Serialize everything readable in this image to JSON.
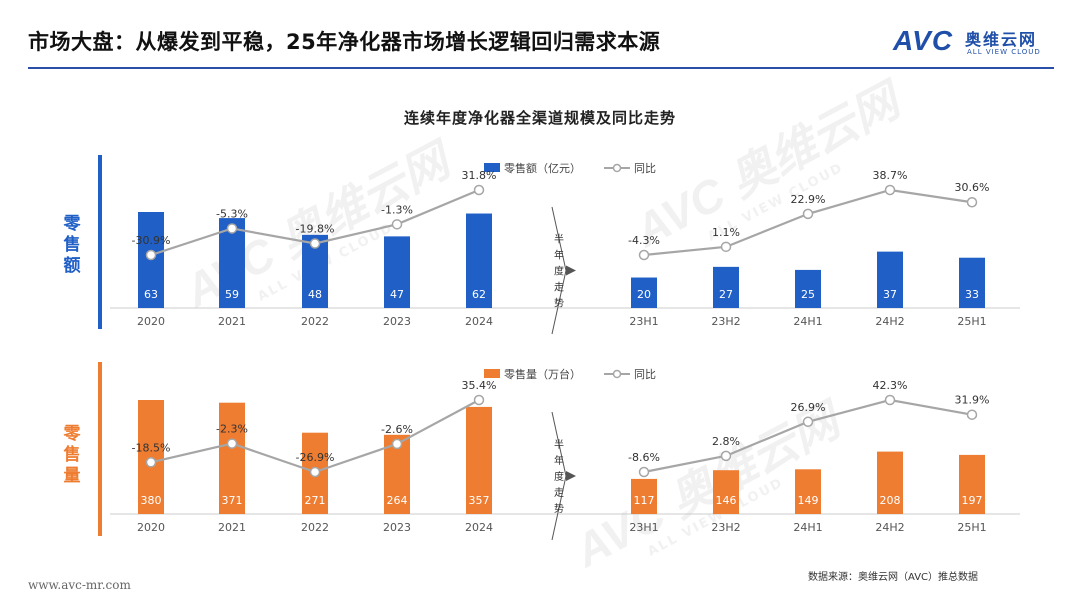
{
  "header": {
    "title": "市场大盘：从爆发到平稳，25年净化器市场增长逻辑回归需求本源",
    "logo_text": "AVC",
    "logo_cn": "奥维云网",
    "logo_en": "ALL VIEW CLOUD"
  },
  "watermark": {
    "text": "AVC 奥维云网",
    "sub": "ALL VIEW CLOUD"
  },
  "colors": {
    "blue": "#1f5fc6",
    "orange": "#ee7d31",
    "line": "#a6a6a6",
    "title_rule": "#2a4fa8"
  },
  "chart_data": [
    {
      "type": "bar",
      "title": "连续年度净化器全渠道规模及同比走势",
      "side_label": "零售额",
      "legend": {
        "bar": "零售额（亿元）",
        "line": "同比"
      },
      "divider_label": "半年度走势",
      "color": "#1f5fc6",
      "annual": {
        "categories": [
          "2020",
          "2021",
          "2022",
          "2023",
          "2024"
        ],
        "values": [
          63,
          59,
          48,
          47,
          62
        ],
        "yoy": [
          "-30.9%",
          "-5.3%",
          "-19.8%",
          "-1.3%",
          "31.8%"
        ],
        "yoy_values": [
          -30.9,
          -5.3,
          -19.8,
          -1.3,
          31.8
        ]
      },
      "half": {
        "categories": [
          "23H1",
          "23H2",
          "24H1",
          "24H2",
          "25H1"
        ],
        "values": [
          20,
          27,
          25,
          37,
          33
        ],
        "yoy": [
          "-4.3%",
          "1.1%",
          "22.9%",
          "38.7%",
          "30.6%"
        ],
        "yoy_values": [
          -4.3,
          1.1,
          22.9,
          38.7,
          30.6
        ]
      }
    },
    {
      "type": "bar",
      "side_label": "零售量",
      "legend": {
        "bar": "零售量（万台）",
        "line": "同比"
      },
      "divider_label": "半年度走势",
      "color": "#ee7d31",
      "annual": {
        "categories": [
          "2020",
          "2021",
          "2022",
          "2023",
          "2024"
        ],
        "values": [
          380,
          371,
          271,
          264,
          357
        ],
        "yoy": [
          "-18.5%",
          "-2.3%",
          "-26.9%",
          "-2.6%",
          "35.4%"
        ],
        "yoy_values": [
          -18.5,
          -2.3,
          -26.9,
          -2.6,
          35.4
        ]
      },
      "half": {
        "categories": [
          "23H1",
          "23H2",
          "24H1",
          "24H2",
          "25H1"
        ],
        "values": [
          117,
          146,
          149,
          208,
          197
        ],
        "yoy": [
          "-8.6%",
          "2.8%",
          "26.9%",
          "42.3%",
          "31.9%"
        ],
        "yoy_values": [
          -8.6,
          2.8,
          26.9,
          42.3,
          31.9
        ]
      }
    }
  ],
  "footer": {
    "url": "www.avc-mr.com",
    "source": "数据来源：奥维云网（AVC）推总数据"
  }
}
